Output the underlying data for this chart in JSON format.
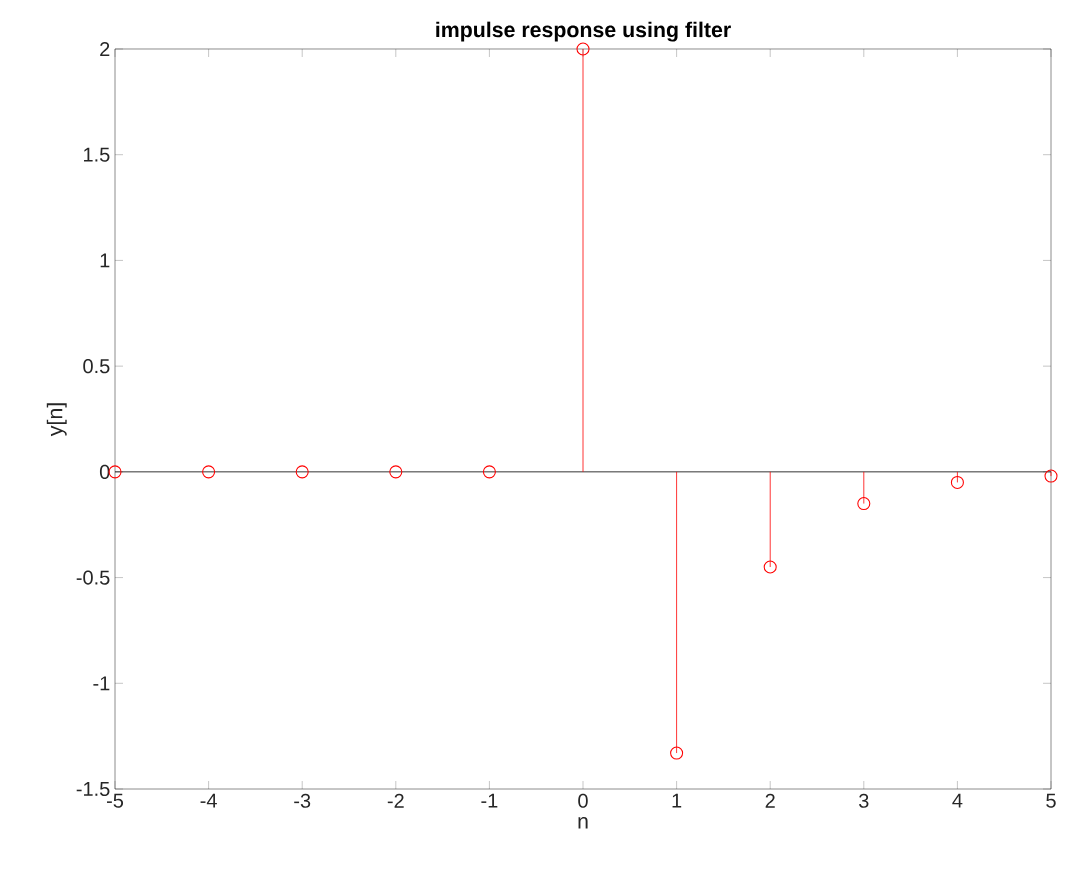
{
  "chart_data": {
    "type": "lollipop",
    "title": "impulse response using filter",
    "xlabel": "n",
    "ylabel": "y[n]",
    "x": [
      -5,
      -4,
      -3,
      -2,
      -1,
      0,
      1,
      2,
      3,
      4,
      5
    ],
    "values": [
      0,
      0,
      0,
      0,
      0,
      2,
      -1.33,
      -0.45,
      -0.15,
      -0.05,
      -0.02
    ],
    "color": "#ff0000",
    "marker": "circle",
    "xlim": [
      -5,
      5
    ],
    "ylim": [
      -1.5,
      2
    ],
    "xticks": [
      -5,
      -4,
      -3,
      -2,
      -1,
      0,
      1,
      2,
      3,
      4,
      5
    ],
    "yticks": [
      -1.5,
      -1,
      -0.5,
      0,
      0.5,
      1,
      1.5,
      2
    ],
    "ref_lines": [
      {
        "axis": "y",
        "value": 0,
        "color": "#000000"
      }
    ],
    "grid": false
  }
}
